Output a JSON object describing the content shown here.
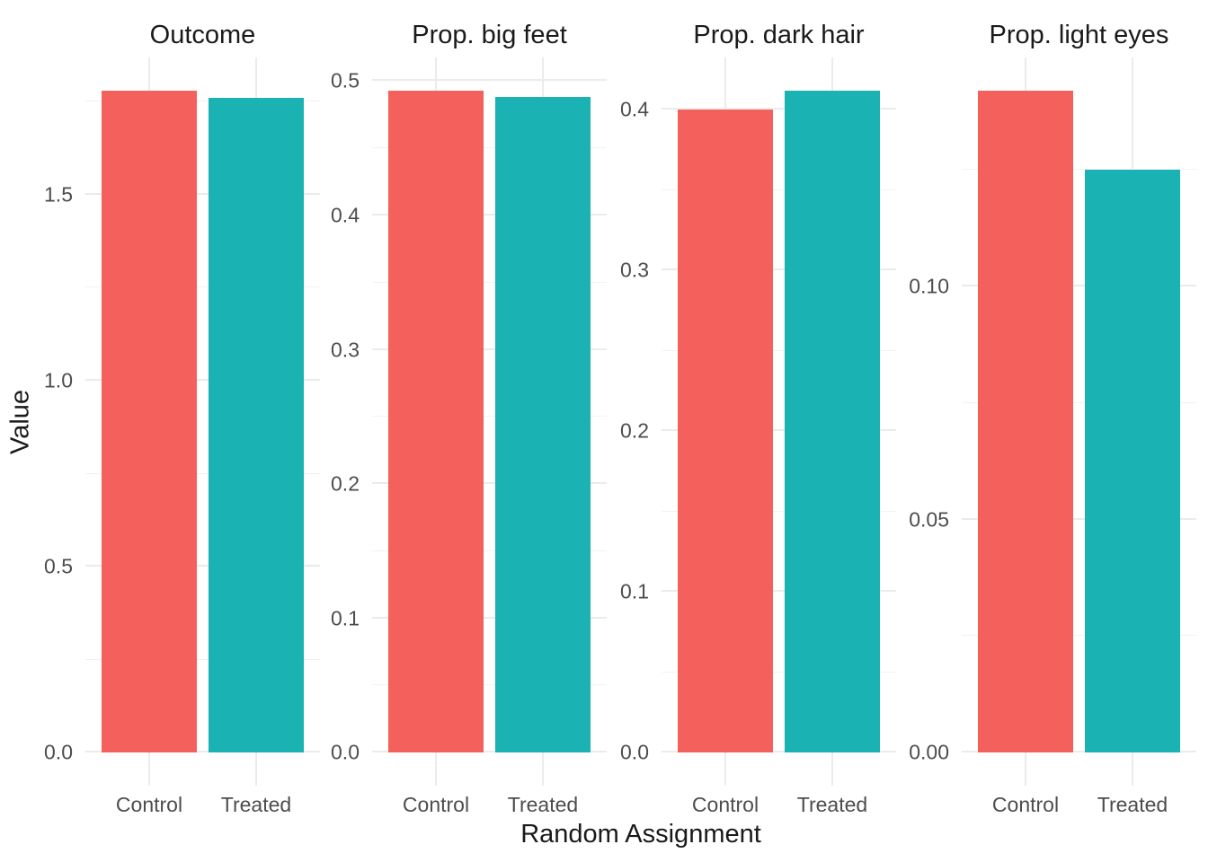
{
  "chart_data": {
    "type": "bar",
    "title": "",
    "xlabel": "Random Assignment",
    "ylabel": "Value",
    "categories": [
      "Control",
      "Treated"
    ],
    "bar_colors": [
      "#F4605C",
      "#1AB2B2"
    ],
    "grid": "on",
    "grid_major_color": "#EBEBEB",
    "grid_minor_color": "#F2F2F2",
    "tick_text_color": "#4D4D4D",
    "title_text_color": "#1A1A1A",
    "legend_position": "none",
    "facets": [
      {
        "title": "Outcome",
        "series": [
          {
            "name": "Control",
            "value": 1.78
          },
          {
            "name": "Treated",
            "value": 1.76
          }
        ],
        "yticks": [
          0.0,
          0.5,
          1.0,
          1.5
        ],
        "ytick_labels": [
          "0.0",
          "0.5",
          "1.0",
          "1.5"
        ],
        "minor_yticks": [
          0.25,
          0.75,
          1.25,
          1.75
        ],
        "ylim": [
          -0.089,
          1.869
        ]
      },
      {
        "title": "Prop. big feet",
        "series": [
          {
            "name": "Control",
            "value": 0.493
          },
          {
            "name": "Treated",
            "value": 0.488
          }
        ],
        "yticks": [
          0.0,
          0.1,
          0.2,
          0.3,
          0.4,
          0.5
        ],
        "ytick_labels": [
          "0.0",
          "0.1",
          "0.2",
          "0.3",
          "0.4",
          "0.5"
        ],
        "minor_yticks": [
          0.05,
          0.15,
          0.25,
          0.35,
          0.45
        ],
        "ylim": [
          -0.0247,
          0.5177
        ]
      },
      {
        "title": "Prop. dark hair",
        "series": [
          {
            "name": "Control",
            "value": 0.4
          },
          {
            "name": "Treated",
            "value": 0.412
          }
        ],
        "yticks": [
          0.0,
          0.1,
          0.2,
          0.3,
          0.4
        ],
        "ytick_labels": [
          "0.0",
          "0.1",
          "0.2",
          "0.3",
          "0.4"
        ],
        "minor_yticks": [
          0.05,
          0.15,
          0.25,
          0.35
        ],
        "ylim": [
          -0.0206,
          0.4326
        ]
      },
      {
        "title": "Prop. light eyes",
        "series": [
          {
            "name": "Control",
            "value": 0.142
          },
          {
            "name": "Treated",
            "value": 0.125
          }
        ],
        "yticks": [
          0.0,
          0.05,
          0.1
        ],
        "ytick_labels": [
          "0.00",
          "0.05",
          "0.10"
        ],
        "minor_yticks": [
          0.025,
          0.075,
          0.125
        ],
        "ylim": [
          -0.0071,
          0.1491
        ]
      }
    ]
  }
}
